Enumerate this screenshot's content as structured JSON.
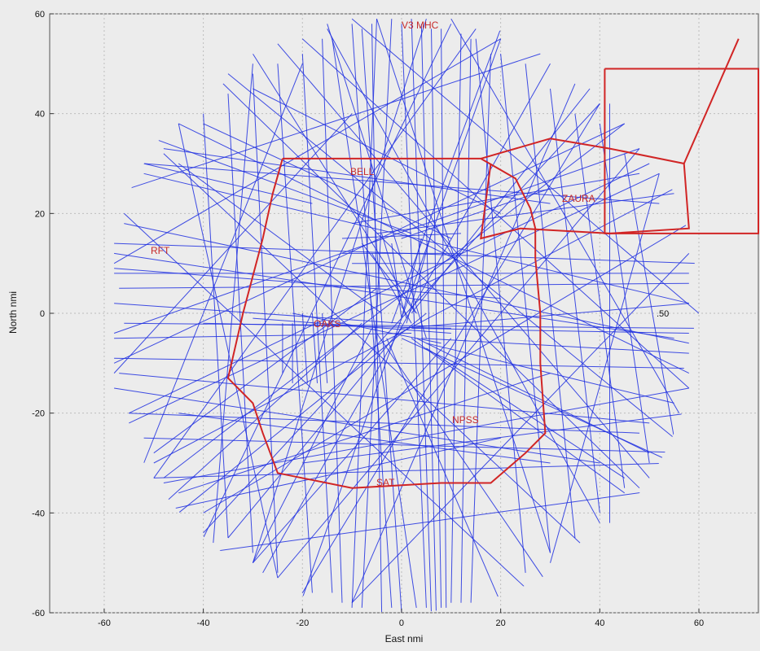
{
  "chart_data": {
    "type": "line",
    "title": "",
    "xlabel": "East  nmi",
    "ylabel": "North  nmi",
    "xlim": [
      -71,
      72
    ],
    "ylim": [
      -60,
      60
    ],
    "xticks": [
      -60,
      -40,
      -20,
      0,
      20,
      40,
      60
    ],
    "yticks": [
      -60,
      -40,
      -20,
      0,
      20,
      40,
      60
    ],
    "grid": true,
    "coverage_radius": 60,
    "colors": {
      "tracks": "#1f2fe0",
      "boundaries": "#d12525",
      "background": "#ececec",
      "grid": "#bdbdbd"
    },
    "tracks": [
      [
        [
          -58,
          8
        ],
        [
          58,
          8
        ]
      ],
      [
        [
          -57,
          5
        ],
        [
          58,
          6
        ]
      ],
      [
        [
          -56,
          -2
        ],
        [
          59,
          -3
        ]
      ],
      [
        [
          -58,
          -9
        ],
        [
          57,
          -11
        ]
      ],
      [
        [
          -57,
          -12
        ],
        [
          50,
          -22
        ]
      ],
      [
        [
          -55,
          -20
        ],
        [
          48,
          -24
        ]
      ],
      [
        [
          -50,
          -33
        ],
        [
          55,
          -30
        ]
      ],
      [
        [
          -48,
          -34
        ],
        [
          58,
          -15
        ]
      ],
      [
        [
          -52,
          -25
        ],
        [
          60,
          -28
        ]
      ],
      [
        [
          -45,
          -36
        ],
        [
          30,
          -12
        ]
      ],
      [
        [
          -58,
          12
        ],
        [
          55,
          -5
        ]
      ],
      [
        [
          -58,
          14
        ],
        [
          60,
          10
        ]
      ],
      [
        [
          -50,
          35
        ],
        [
          2,
          16
        ]
      ],
      [
        [
          -48,
          33
        ],
        [
          30,
          22
        ]
      ],
      [
        [
          -52,
          30
        ],
        [
          -18,
          22
        ]
      ],
      [
        [
          -45,
          30
        ],
        [
          -4,
          0
        ]
      ],
      [
        [
          -40,
          38
        ],
        [
          10,
          15
        ]
      ],
      [
        [
          -30,
          45
        ],
        [
          20,
          20
        ]
      ],
      [
        [
          -50,
          -28
        ],
        [
          -5,
          5
        ]
      ],
      [
        [
          -45,
          -40
        ],
        [
          5,
          0
        ]
      ],
      [
        [
          -35,
          -45
        ],
        [
          0,
          -3
        ]
      ],
      [
        [
          -30,
          -50
        ],
        [
          10,
          -5
        ]
      ],
      [
        [
          -40,
          -48
        ],
        [
          55,
          -35
        ]
      ],
      [
        [
          -20,
          -57
        ],
        [
          20,
          55
        ]
      ],
      [
        [
          -10,
          -59
        ],
        [
          -5,
          59
        ]
      ],
      [
        [
          -8,
          -59
        ],
        [
          -2,
          59
        ]
      ],
      [
        [
          -4,
          -60
        ],
        [
          -6,
          58
        ]
      ],
      [
        [
          -2,
          -59
        ],
        [
          -10,
          58
        ]
      ],
      [
        [
          0,
          -60
        ],
        [
          -8,
          57
        ]
      ],
      [
        [
          3,
          -59
        ],
        [
          -14,
          55
        ]
      ],
      [
        [
          5,
          -59
        ],
        [
          0,
          58
        ]
      ],
      [
        [
          6,
          -60
        ],
        [
          2,
          59
        ]
      ],
      [
        [
          7,
          -60
        ],
        [
          4,
          58
        ]
      ],
      [
        [
          8,
          -59
        ],
        [
          6,
          57
        ]
      ],
      [
        [
          9,
          -59
        ],
        [
          8,
          57
        ]
      ],
      [
        [
          10,
          -58
        ],
        [
          12,
          56
        ]
      ],
      [
        [
          12,
          -58
        ],
        [
          14,
          55
        ]
      ],
      [
        [
          14,
          -58
        ],
        [
          18,
          52
        ]
      ],
      [
        [
          -12,
          -58
        ],
        [
          -16,
          55
        ]
      ],
      [
        [
          -14,
          -56
        ],
        [
          -20,
          52
        ]
      ],
      [
        [
          -18,
          -56
        ],
        [
          -25,
          50
        ]
      ],
      [
        [
          -25,
          -52
        ],
        [
          -30,
          48
        ]
      ],
      [
        [
          -30,
          -48
        ],
        [
          -35,
          44
        ]
      ],
      [
        [
          -35,
          -45
        ],
        [
          -40,
          40
        ]
      ],
      [
        [
          25,
          -52
        ],
        [
          15,
          55
        ]
      ],
      [
        [
          30,
          -48
        ],
        [
          20,
          52
        ]
      ],
      [
        [
          35,
          -45
        ],
        [
          25,
          50
        ]
      ],
      [
        [
          40,
          -40
        ],
        [
          30,
          45
        ]
      ],
      [
        [
          45,
          -35
        ],
        [
          35,
          40
        ]
      ],
      [
        [
          50,
          -30
        ],
        [
          40,
          38
        ]
      ],
      [
        [
          55,
          -25
        ],
        [
          45,
          32
        ]
      ],
      [
        [
          58,
          -15
        ],
        [
          -20,
          55
        ]
      ],
      [
        [
          58,
          18
        ],
        [
          -40,
          -40
        ]
      ],
      [
        [
          55,
          25
        ],
        [
          -50,
          -30
        ]
      ],
      [
        [
          50,
          30
        ],
        [
          -55,
          -20
        ]
      ],
      [
        [
          48,
          33
        ],
        [
          -25,
          -53
        ]
      ],
      [
        [
          45,
          38
        ],
        [
          -58,
          -10
        ]
      ],
      [
        [
          40,
          42
        ],
        [
          -20,
          -56
        ]
      ],
      [
        [
          35,
          46
        ],
        [
          -10,
          -58
        ]
      ],
      [
        [
          28,
          52
        ],
        [
          -55,
          25
        ]
      ],
      [
        [
          20,
          55
        ],
        [
          -58,
          10
        ]
      ],
      [
        [
          15,
          57
        ],
        [
          -50,
          -33
        ]
      ],
      [
        [
          10,
          58
        ],
        [
          -40,
          -45
        ]
      ],
      [
        [
          5,
          59
        ],
        [
          -30,
          -50
        ]
      ],
      [
        [
          -5,
          59
        ],
        [
          30,
          -48
        ]
      ],
      [
        [
          -15,
          57
        ],
        [
          40,
          -42
        ]
      ],
      [
        [
          -25,
          54
        ],
        [
          50,
          -33
        ]
      ],
      [
        [
          -35,
          48
        ],
        [
          55,
          -25
        ]
      ],
      [
        [
          -45,
          38
        ],
        [
          58,
          -12
        ]
      ],
      [
        [
          -52,
          28
        ],
        [
          58,
          2
        ]
      ],
      [
        [
          -56,
          18
        ],
        [
          58,
          -6
        ]
      ],
      [
        [
          -58,
          -4
        ],
        [
          48,
          33
        ]
      ],
      [
        [
          -55,
          -22
        ],
        [
          52,
          28
        ]
      ],
      [
        [
          -48,
          -33
        ],
        [
          45,
          38
        ]
      ],
      [
        [
          -40,
          -44
        ],
        [
          40,
          42
        ]
      ],
      [
        [
          -28,
          -52
        ],
        [
          30,
          50
        ]
      ],
      [
        [
          -58,
          9
        ],
        [
          20,
          3
        ]
      ],
      [
        [
          -58,
          2
        ],
        [
          0,
          -2
        ]
      ],
      [
        [
          -58,
          -5
        ],
        [
          2,
          -4
        ]
      ],
      [
        [
          -40,
          -2
        ],
        [
          10,
          -3
        ]
      ],
      [
        [
          -30,
          -1
        ],
        [
          10,
          -4
        ]
      ],
      [
        [
          -22,
          0
        ],
        [
          8,
          -6
        ]
      ],
      [
        [
          -22,
          -2
        ],
        [
          -22,
          -14
        ]
      ],
      [
        [
          -20,
          0
        ],
        [
          -19,
          -14
        ]
      ],
      [
        [
          -18,
          0
        ],
        [
          -17,
          -14
        ]
      ],
      [
        [
          -16,
          0
        ],
        [
          -15,
          -14
        ]
      ],
      [
        [
          -24,
          -2
        ],
        [
          -24,
          -12
        ]
      ],
      [
        [
          58,
          2
        ],
        [
          0,
          -3
        ]
      ],
      [
        [
          58,
          -4
        ],
        [
          2,
          -3
        ]
      ],
      [
        [
          58,
          -8
        ],
        [
          4,
          -5
        ]
      ],
      [
        [
          55,
          -18
        ],
        [
          5,
          -6
        ]
      ],
      [
        [
          50,
          -28
        ],
        [
          3,
          -5
        ]
      ],
      [
        [
          45,
          -36
        ],
        [
          2,
          -5
        ]
      ],
      [
        [
          0,
          15
        ],
        [
          30,
          25
        ]
      ],
      [
        [
          -5,
          16
        ],
        [
          55,
          24
        ]
      ],
      [
        [
          -10,
          18
        ],
        [
          48,
          28
        ]
      ],
      [
        [
          -8,
          14
        ],
        [
          3,
          0
        ]
      ],
      [
        [
          -6,
          12
        ],
        [
          2,
          -2
        ]
      ],
      [
        [
          -4,
          16
        ],
        [
          1,
          -1
        ]
      ],
      [
        [
          -2,
          14
        ],
        [
          0,
          -1
        ]
      ],
      [
        [
          4,
          15
        ],
        [
          0,
          -1
        ]
      ],
      [
        [
          6,
          16
        ],
        [
          1,
          -2
        ]
      ],
      [
        [
          -12,
          15
        ],
        [
          12,
          16
        ]
      ],
      [
        [
          -12,
          12
        ],
        [
          12,
          12
        ]
      ],
      [
        [
          -10,
          10
        ],
        [
          10,
          10
        ]
      ],
      [
        [
          -50,
          -40
        ],
        [
          20,
          -25
        ]
      ],
      [
        [
          -45,
          -20
        ],
        [
          30,
          -30
        ]
      ],
      [
        [
          -20,
          -30
        ],
        [
          58,
          -20
        ]
      ],
      [
        [
          -58,
          -15
        ],
        [
          40,
          -30
        ]
      ],
      [
        [
          0,
          -5
        ],
        [
          55,
          -30
        ]
      ],
      [
        [
          5,
          -7
        ],
        [
          45,
          -33
        ]
      ],
      [
        [
          -5,
          -4
        ],
        [
          30,
          -55
        ]
      ],
      [
        [
          -3,
          -5
        ],
        [
          20,
          -58
        ]
      ],
      [
        [
          -6,
          -3
        ],
        [
          -30,
          -50
        ]
      ],
      [
        [
          -8,
          -2
        ],
        [
          -50,
          -40
        ]
      ],
      [
        [
          -15,
          58
        ],
        [
          5,
          -5
        ]
      ],
      [
        [
          -30,
          52
        ],
        [
          3,
          0
        ]
      ],
      [
        [
          20,
          57
        ],
        [
          -2,
          -2
        ]
      ],
      [
        [
          38,
          45
        ],
        [
          2,
          0
        ]
      ],
      [
        [
          52,
          22
        ],
        [
          -52,
          30
        ]
      ],
      [
        [
          -58,
          -12
        ],
        [
          -10,
          40
        ]
      ],
      [
        [
          -52,
          -30
        ],
        [
          -20,
          50
        ]
      ],
      [
        [
          -38,
          -46
        ],
        [
          -30,
          50
        ]
      ],
      [
        [
          -25,
          -53
        ],
        [
          -45,
          38
        ]
      ],
      [
        [
          60,
          0
        ],
        [
          -10,
          59
        ]
      ],
      [
        [
          56,
          -20
        ],
        [
          10,
          59
        ]
      ],
      [
        [
          42,
          -42
        ],
        [
          42,
          42
        ]
      ],
      [
        [
          30,
          -50
        ],
        [
          52,
          28
        ]
      ],
      [
        [
          -10,
          -58
        ],
        [
          58,
          12
        ]
      ],
      [
        [
          -56,
          20
        ],
        [
          25,
          -55
        ]
      ],
      [
        [
          -48,
          32
        ],
        [
          36,
          -46
        ]
      ],
      [
        [
          -36,
          46
        ],
        [
          48,
          -35
        ]
      ]
    ],
    "boundaries": [
      [
        [
          -24,
          31
        ],
        [
          16,
          31
        ],
        [
          23,
          27
        ],
        [
          26,
          21
        ],
        [
          27,
          17
        ],
        [
          27,
          11
        ],
        [
          28,
          0
        ],
        [
          28,
          -10
        ],
        [
          29,
          -24
        ],
        [
          25,
          -28
        ],
        [
          18,
          -34
        ],
        [
          15,
          -34
        ],
        [
          8,
          -34
        ],
        [
          -10,
          -35
        ],
        [
          -25,
          -32
        ],
        [
          -28,
          -24
        ],
        [
          -30,
          -18
        ],
        [
          -35,
          -13
        ],
        [
          -32,
          0
        ],
        [
          -28,
          15
        ],
        [
          -26,
          24
        ],
        [
          -24,
          31
        ]
      ],
      [
        [
          16,
          31
        ],
        [
          30,
          35
        ],
        [
          42,
          33
        ],
        [
          57,
          30
        ],
        [
          58,
          17
        ],
        [
          42,
          16
        ],
        [
          24,
          17
        ],
        [
          16,
          15
        ],
        [
          18,
          30
        ]
      ],
      [
        [
          41,
          49
        ],
        [
          72,
          49
        ],
        [
          72,
          16
        ],
        [
          41,
          16
        ],
        [
          41,
          49
        ]
      ],
      [
        [
          57,
          30
        ],
        [
          68,
          55
        ]
      ]
    ],
    "region_labels": [
      "V3 MHC",
      "BELL",
      "RFT",
      "ZAURA",
      "OAKS",
      "NPSS",
      "SAT"
    ],
    "annotations": [
      ".50"
    ]
  }
}
